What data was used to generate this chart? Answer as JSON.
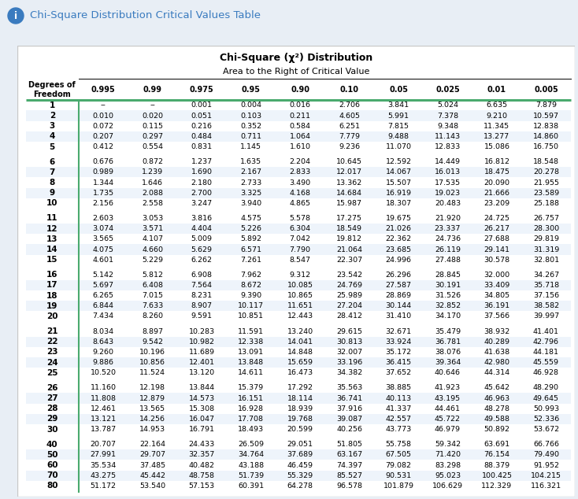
{
  "title_bar_text": "Chi-Square Distribution Critical Values Table",
  "table_title_line1": "Chi-Square (χ²) Distribution",
  "table_title_line2": "Area to the Right of Critical Value",
  "col_headers": [
    "0.995",
    "0.99",
    "0.975",
    "0.95",
    "0.90",
    "0.10",
    "0.05",
    "0.025",
    "0.01",
    "0.005"
  ],
  "row_labels": [
    "1",
    "2",
    "3",
    "4",
    "5",
    "6",
    "7",
    "8",
    "9",
    "10",
    "11",
    "12",
    "13",
    "14",
    "15",
    "16",
    "17",
    "18",
    "19",
    "20",
    "21",
    "22",
    "23",
    "24",
    "25",
    "26",
    "27",
    "28",
    "29",
    "30",
    "40",
    "50",
    "60",
    "70",
    "80"
  ],
  "table_data": [
    [
      "--",
      "--",
      "0.001",
      "0.004",
      "0.016",
      "2.706",
      "3.841",
      "5.024",
      "6.635",
      "7.879"
    ],
    [
      "0.010",
      "0.020",
      "0.051",
      "0.103",
      "0.211",
      "4.605",
      "5.991",
      "7.378",
      "9.210",
      "10.597"
    ],
    [
      "0.072",
      "0.115",
      "0.216",
      "0.352",
      "0.584",
      "6.251",
      "7.815",
      "9.348",
      "11.345",
      "12.838"
    ],
    [
      "0.207",
      "0.297",
      "0.484",
      "0.711",
      "1.064",
      "7.779",
      "9.488",
      "11.143",
      "13.277",
      "14.860"
    ],
    [
      "0.412",
      "0.554",
      "0.831",
      "1.145",
      "1.610",
      "9.236",
      "11.070",
      "12.833",
      "15.086",
      "16.750"
    ],
    [
      "0.676",
      "0.872",
      "1.237",
      "1.635",
      "2.204",
      "10.645",
      "12.592",
      "14.449",
      "16.812",
      "18.548"
    ],
    [
      "0.989",
      "1.239",
      "1.690",
      "2.167",
      "2.833",
      "12.017",
      "14.067",
      "16.013",
      "18.475",
      "20.278"
    ],
    [
      "1.344",
      "1.646",
      "2.180",
      "2.733",
      "3.490",
      "13.362",
      "15.507",
      "17.535",
      "20.090",
      "21.955"
    ],
    [
      "1.735",
      "2.088",
      "2.700",
      "3.325",
      "4.168",
      "14.684",
      "16.919",
      "19.023",
      "21.666",
      "23.589"
    ],
    [
      "2.156",
      "2.558",
      "3.247",
      "3.940",
      "4.865",
      "15.987",
      "18.307",
      "20.483",
      "23.209",
      "25.188"
    ],
    [
      "2.603",
      "3.053",
      "3.816",
      "4.575",
      "5.578",
      "17.275",
      "19.675",
      "21.920",
      "24.725",
      "26.757"
    ],
    [
      "3.074",
      "3.571",
      "4.404",
      "5.226",
      "6.304",
      "18.549",
      "21.026",
      "23.337",
      "26.217",
      "28.300"
    ],
    [
      "3.565",
      "4.107",
      "5.009",
      "5.892",
      "7.042",
      "19.812",
      "22.362",
      "24.736",
      "27.688",
      "29.819"
    ],
    [
      "4.075",
      "4.660",
      "5.629",
      "6.571",
      "7.790",
      "21.064",
      "23.685",
      "26.119",
      "29.141",
      "31.319"
    ],
    [
      "4.601",
      "5.229",
      "6.262",
      "7.261",
      "8.547",
      "22.307",
      "24.996",
      "27.488",
      "30.578",
      "32.801"
    ],
    [
      "5.142",
      "5.812",
      "6.908",
      "7.962",
      "9.312",
      "23.542",
      "26.296",
      "28.845",
      "32.000",
      "34.267"
    ],
    [
      "5.697",
      "6.408",
      "7.564",
      "8.672",
      "10.085",
      "24.769",
      "27.587",
      "30.191",
      "33.409",
      "35.718"
    ],
    [
      "6.265",
      "7.015",
      "8.231",
      "9.390",
      "10.865",
      "25.989",
      "28.869",
      "31.526",
      "34.805",
      "37.156"
    ],
    [
      "6.844",
      "7.633",
      "8.907",
      "10.117",
      "11.651",
      "27.204",
      "30.144",
      "32.852",
      "36.191",
      "38.582"
    ],
    [
      "7.434",
      "8.260",
      "9.591",
      "10.851",
      "12.443",
      "28.412",
      "31.410",
      "34.170",
      "37.566",
      "39.997"
    ],
    [
      "8.034",
      "8.897",
      "10.283",
      "11.591",
      "13.240",
      "29.615",
      "32.671",
      "35.479",
      "38.932",
      "41.401"
    ],
    [
      "8.643",
      "9.542",
      "10.982",
      "12.338",
      "14.041",
      "30.813",
      "33.924",
      "36.781",
      "40.289",
      "42.796"
    ],
    [
      "9.260",
      "10.196",
      "11.689",
      "13.091",
      "14.848",
      "32.007",
      "35.172",
      "38.076",
      "41.638",
      "44.181"
    ],
    [
      "9.886",
      "10.856",
      "12.401",
      "13.848",
      "15.659",
      "33.196",
      "36.415",
      "39.364",
      "42.980",
      "45.559"
    ],
    [
      "10.520",
      "11.524",
      "13.120",
      "14.611",
      "16.473",
      "34.382",
      "37.652",
      "40.646",
      "44.314",
      "46.928"
    ],
    [
      "11.160",
      "12.198",
      "13.844",
      "15.379",
      "17.292",
      "35.563",
      "38.885",
      "41.923",
      "45.642",
      "48.290"
    ],
    [
      "11.808",
      "12.879",
      "14.573",
      "16.151",
      "18.114",
      "36.741",
      "40.113",
      "43.195",
      "46.963",
      "49.645"
    ],
    [
      "12.461",
      "13.565",
      "15.308",
      "16.928",
      "18.939",
      "37.916",
      "41.337",
      "44.461",
      "48.278",
      "50.993"
    ],
    [
      "13.121",
      "14.256",
      "16.047",
      "17.708",
      "19.768",
      "39.087",
      "42.557",
      "45.722",
      "49.588",
      "52.336"
    ],
    [
      "13.787",
      "14.953",
      "16.791",
      "18.493",
      "20.599",
      "40.256",
      "43.773",
      "46.979",
      "50.892",
      "53.672"
    ],
    [
      "20.707",
      "22.164",
      "24.433",
      "26.509",
      "29.051",
      "51.805",
      "55.758",
      "59.342",
      "63.691",
      "66.766"
    ],
    [
      "27.991",
      "29.707",
      "32.357",
      "34.764",
      "37.689",
      "63.167",
      "67.505",
      "71.420",
      "76.154",
      "79.490"
    ],
    [
      "35.534",
      "37.485",
      "40.482",
      "43.188",
      "46.459",
      "74.397",
      "79.082",
      "83.298",
      "88.379",
      "91.952"
    ],
    [
      "43.275",
      "45.442",
      "48.758",
      "51.739",
      "55.329",
      "85.527",
      "90.531",
      "95.023",
      "100.425",
      "104.215"
    ],
    [
      "51.172",
      "53.540",
      "57.153",
      "60.391",
      "64.278",
      "96.578",
      "101.879",
      "106.629",
      "112.329",
      "116.321"
    ]
  ],
  "group_breaks": [
    5,
    10,
    15,
    20,
    25,
    30
  ],
  "header_bg": "#dce9f5",
  "odd_row_bg": "#ffffff",
  "even_row_bg": "#eef4fb",
  "border_color": "#4aaa6e",
  "title_bar_bg": "#dce9f5",
  "title_bar_text_color": "#3a7bbf",
  "info_icon_color": "#3a7bbf",
  "outer_bg": "#e8eef5"
}
